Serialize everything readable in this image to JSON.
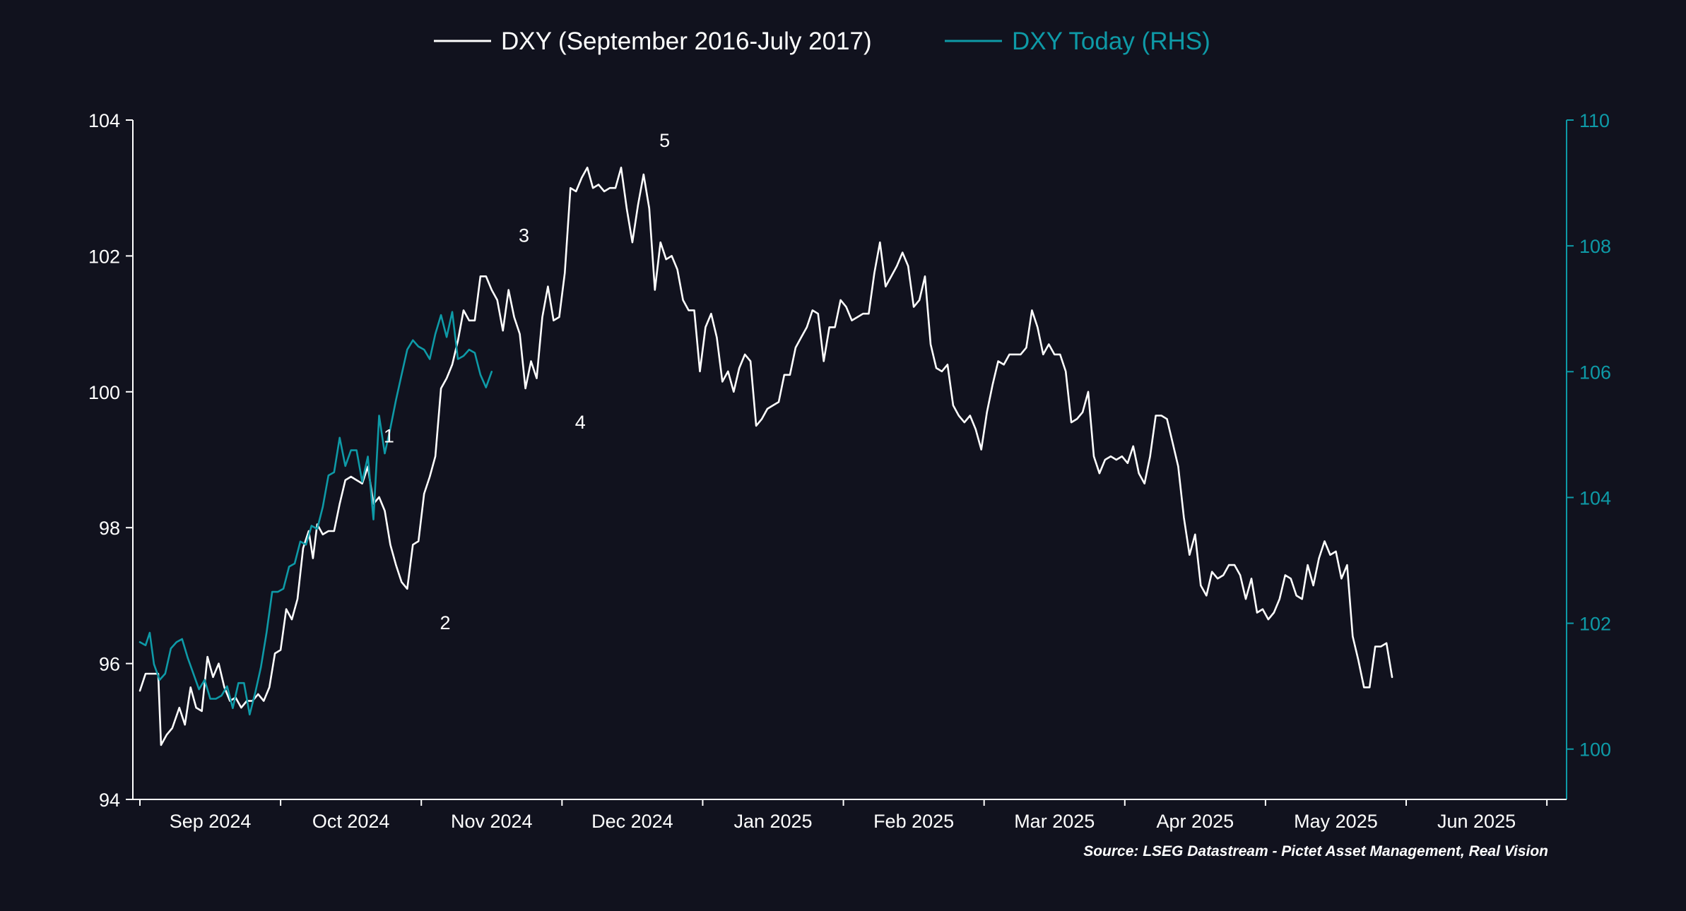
{
  "colors": {
    "background": "#11121e",
    "series_1": "#ffffff",
    "series_2": "#0e9aa7",
    "left_axis": "#ffffff",
    "right_axis": "#0e9aa7"
  },
  "chart_data": {
    "type": "line",
    "legend": {
      "placement": "top-center",
      "items": [
        {
          "label": "DXY (September 2016-July 2017)",
          "color": "#ffffff"
        },
        {
          "label": "DXY Today (RHS)",
          "color": "#0e9aa7"
        }
      ]
    },
    "source": "Source: LSEG Datastream - Pictet Asset Management, Real Vision",
    "grid": false,
    "x_axis": {
      "labels": [
        "Sep 2024",
        "Oct 2024",
        "Nov 2024",
        "Dec 2024",
        "Jan 2025",
        "Feb 2025",
        "Mar 2025",
        "Apr 2025",
        "May 2025",
        "Jun 2025"
      ],
      "range": [
        0,
        10.14
      ]
    },
    "y_axis_left": {
      "range": [
        94,
        104
      ],
      "ticks": [
        94,
        96,
        98,
        100,
        102,
        104
      ],
      "tick_labels": [
        "94",
        "96",
        "98",
        "100",
        "102",
        "104"
      ]
    },
    "y_axis_right": {
      "range": [
        99.2,
        110
      ],
      "ticks": [
        100,
        102,
        104,
        106,
        108,
        110
      ],
      "tick_labels": [
        "100",
        "102",
        "104",
        "106",
        "108",
        "110"
      ]
    },
    "annotations": [
      {
        "text": "1",
        "x": 1.77,
        "y": 99.35
      },
      {
        "text": "2",
        "x": 2.17,
        "y": 96.6
      },
      {
        "text": "3",
        "x": 2.73,
        "y": 102.3
      },
      {
        "text": "4",
        "x": 3.13,
        "y": 99.55
      },
      {
        "text": "5",
        "x": 3.73,
        "y": 103.7
      }
    ],
    "series": [
      {
        "name": "DXY (September 2016-July 2017)",
        "axis": "left",
        "points": [
          [
            0.0,
            95.6
          ],
          [
            0.04,
            95.85
          ],
          [
            0.09,
            95.85
          ],
          [
            0.13,
            95.85
          ],
          [
            0.15,
            94.8
          ],
          [
            0.19,
            94.95
          ],
          [
            0.23,
            95.05
          ],
          [
            0.28,
            95.35
          ],
          [
            0.32,
            95.1
          ],
          [
            0.36,
            95.65
          ],
          [
            0.4,
            95.35
          ],
          [
            0.44,
            95.3
          ],
          [
            0.48,
            96.1
          ],
          [
            0.52,
            95.8
          ],
          [
            0.56,
            96.0
          ],
          [
            0.6,
            95.65
          ],
          [
            0.64,
            95.45
          ],
          [
            0.68,
            95.5
          ],
          [
            0.72,
            95.35
          ],
          [
            0.76,
            95.45
          ],
          [
            0.8,
            95.45
          ],
          [
            0.84,
            95.55
          ],
          [
            0.88,
            95.45
          ],
          [
            0.92,
            95.65
          ],
          [
            0.96,
            96.15
          ],
          [
            1.0,
            96.2
          ],
          [
            1.04,
            96.8
          ],
          [
            1.08,
            96.65
          ],
          [
            1.12,
            96.95
          ],
          [
            1.16,
            97.7
          ],
          [
            1.2,
            97.95
          ],
          [
            1.23,
            97.55
          ],
          [
            1.26,
            98.05
          ],
          [
            1.3,
            97.9
          ],
          [
            1.34,
            97.95
          ],
          [
            1.38,
            97.95
          ],
          [
            1.42,
            98.35
          ],
          [
            1.46,
            98.7
          ],
          [
            1.5,
            98.75
          ],
          [
            1.54,
            98.7
          ],
          [
            1.58,
            98.65
          ],
          [
            1.62,
            98.9
          ],
          [
            1.66,
            98.35
          ],
          [
            1.7,
            98.45
          ],
          [
            1.74,
            98.25
          ],
          [
            1.78,
            97.75
          ],
          [
            1.82,
            97.45
          ],
          [
            1.86,
            97.2
          ],
          [
            1.9,
            97.1
          ],
          [
            1.94,
            97.75
          ],
          [
            1.98,
            97.8
          ],
          [
            2.02,
            98.5
          ],
          [
            2.06,
            98.75
          ],
          [
            2.1,
            99.05
          ],
          [
            2.14,
            100.05
          ],
          [
            2.18,
            100.2
          ],
          [
            2.22,
            100.4
          ],
          [
            2.26,
            100.75
          ],
          [
            2.3,
            101.2
          ],
          [
            2.34,
            101.05
          ],
          [
            2.38,
            101.05
          ],
          [
            2.42,
            101.7
          ],
          [
            2.46,
            101.7
          ],
          [
            2.5,
            101.5
          ],
          [
            2.54,
            101.35
          ],
          [
            2.58,
            100.9
          ],
          [
            2.62,
            101.5
          ],
          [
            2.66,
            101.1
          ],
          [
            2.7,
            100.85
          ],
          [
            2.74,
            100.05
          ],
          [
            2.78,
            100.45
          ],
          [
            2.82,
            100.2
          ],
          [
            2.86,
            101.1
          ],
          [
            2.9,
            101.55
          ],
          [
            2.94,
            101.05
          ],
          [
            2.98,
            101.1
          ],
          [
            3.02,
            101.75
          ],
          [
            3.06,
            103.0
          ],
          [
            3.1,
            102.95
          ],
          [
            3.14,
            103.15
          ],
          [
            3.18,
            103.3
          ],
          [
            3.22,
            103.0
          ],
          [
            3.26,
            103.05
          ],
          [
            3.3,
            102.95
          ],
          [
            3.34,
            103.0
          ],
          [
            3.38,
            103.0
          ],
          [
            3.42,
            103.3
          ],
          [
            3.46,
            102.7
          ],
          [
            3.5,
            102.2
          ],
          [
            3.54,
            102.75
          ],
          [
            3.58,
            103.2
          ],
          [
            3.62,
            102.7
          ],
          [
            3.66,
            101.5
          ],
          [
            3.7,
            102.2
          ],
          [
            3.74,
            101.95
          ],
          [
            3.78,
            102.0
          ],
          [
            3.82,
            101.8
          ],
          [
            3.86,
            101.35
          ],
          [
            3.9,
            101.2
          ],
          [
            3.94,
            101.2
          ],
          [
            3.98,
            100.3
          ],
          [
            4.02,
            100.95
          ],
          [
            4.06,
            101.15
          ],
          [
            4.1,
            100.8
          ],
          [
            4.14,
            100.15
          ],
          [
            4.18,
            100.3
          ],
          [
            4.22,
            100.0
          ],
          [
            4.26,
            100.35
          ],
          [
            4.3,
            100.55
          ],
          [
            4.34,
            100.45
          ],
          [
            4.38,
            99.5
          ],
          [
            4.42,
            99.6
          ],
          [
            4.46,
            99.75
          ],
          [
            4.5,
            99.8
          ],
          [
            4.54,
            99.85
          ],
          [
            4.58,
            100.25
          ],
          [
            4.62,
            100.25
          ],
          [
            4.66,
            100.65
          ],
          [
            4.7,
            100.8
          ],
          [
            4.74,
            100.95
          ],
          [
            4.78,
            101.2
          ],
          [
            4.82,
            101.15
          ],
          [
            4.86,
            100.45
          ],
          [
            4.9,
            100.95
          ],
          [
            4.94,
            100.95
          ],
          [
            4.98,
            101.35
          ],
          [
            5.02,
            101.25
          ],
          [
            5.06,
            101.05
          ],
          [
            5.1,
            101.1
          ],
          [
            5.14,
            101.15
          ],
          [
            5.18,
            101.15
          ],
          [
            5.22,
            101.75
          ],
          [
            5.26,
            102.2
          ],
          [
            5.3,
            101.55
          ],
          [
            5.34,
            101.7
          ],
          [
            5.38,
            101.85
          ],
          [
            5.42,
            102.05
          ],
          [
            5.46,
            101.85
          ],
          [
            5.5,
            101.25
          ],
          [
            5.54,
            101.35
          ],
          [
            5.58,
            101.7
          ],
          [
            5.62,
            100.7
          ],
          [
            5.66,
            100.35
          ],
          [
            5.7,
            100.3
          ],
          [
            5.74,
            100.4
          ],
          [
            5.78,
            99.8
          ],
          [
            5.82,
            99.65
          ],
          [
            5.86,
            99.55
          ],
          [
            5.9,
            99.65
          ],
          [
            5.94,
            99.45
          ],
          [
            5.98,
            99.15
          ],
          [
            6.02,
            99.7
          ],
          [
            6.06,
            100.1
          ],
          [
            6.1,
            100.45
          ],
          [
            6.14,
            100.4
          ],
          [
            6.18,
            100.55
          ],
          [
            6.22,
            100.55
          ],
          [
            6.26,
            100.55
          ],
          [
            6.3,
            100.65
          ],
          [
            6.34,
            101.2
          ],
          [
            6.38,
            100.95
          ],
          [
            6.42,
            100.55
          ],
          [
            6.46,
            100.7
          ],
          [
            6.5,
            100.55
          ],
          [
            6.54,
            100.55
          ],
          [
            6.58,
            100.3
          ],
          [
            6.62,
            99.55
          ],
          [
            6.66,
            99.6
          ],
          [
            6.7,
            99.7
          ],
          [
            6.74,
            100.0
          ],
          [
            6.78,
            99.05
          ],
          [
            6.82,
            98.8
          ],
          [
            6.86,
            99.0
          ],
          [
            6.9,
            99.05
          ],
          [
            6.94,
            99.0
          ],
          [
            6.98,
            99.05
          ],
          [
            7.02,
            98.95
          ],
          [
            7.06,
            99.2
          ],
          [
            7.1,
            98.8
          ],
          [
            7.14,
            98.65
          ],
          [
            7.18,
            99.05
          ],
          [
            7.22,
            99.65
          ],
          [
            7.26,
            99.65
          ],
          [
            7.3,
            99.6
          ],
          [
            7.34,
            99.25
          ],
          [
            7.38,
            98.9
          ],
          [
            7.42,
            98.15
          ],
          [
            7.46,
            97.6
          ],
          [
            7.5,
            97.9
          ],
          [
            7.54,
            97.15
          ],
          [
            7.58,
            97.0
          ],
          [
            7.62,
            97.35
          ],
          [
            7.66,
            97.25
          ],
          [
            7.7,
            97.3
          ],
          [
            7.74,
            97.45
          ],
          [
            7.78,
            97.45
          ],
          [
            7.82,
            97.3
          ],
          [
            7.86,
            96.95
          ],
          [
            7.9,
            97.25
          ],
          [
            7.94,
            96.75
          ],
          [
            7.98,
            96.8
          ],
          [
            8.02,
            96.65
          ],
          [
            8.06,
            96.75
          ],
          [
            8.1,
            96.95
          ],
          [
            8.14,
            97.3
          ],
          [
            8.18,
            97.25
          ],
          [
            8.22,
            97.0
          ],
          [
            8.26,
            96.95
          ],
          [
            8.3,
            97.45
          ],
          [
            8.34,
            97.15
          ],
          [
            8.38,
            97.55
          ],
          [
            8.42,
            97.8
          ],
          [
            8.46,
            97.6
          ],
          [
            8.5,
            97.65
          ],
          [
            8.54,
            97.25
          ],
          [
            8.58,
            97.45
          ],
          [
            8.62,
            96.4
          ],
          [
            8.66,
            96.05
          ],
          [
            8.7,
            95.65
          ],
          [
            8.74,
            95.65
          ],
          [
            8.78,
            96.25
          ],
          [
            8.82,
            96.25
          ],
          [
            8.86,
            96.3
          ],
          [
            8.9,
            95.8
          ]
        ]
      },
      {
        "name": "DXY Today (RHS)",
        "axis": "right",
        "points": [
          [
            0.0,
            101.7
          ],
          [
            0.04,
            101.65
          ],
          [
            0.07,
            101.85
          ],
          [
            0.1,
            101.35
          ],
          [
            0.14,
            101.1
          ],
          [
            0.18,
            101.2
          ],
          [
            0.22,
            101.6
          ],
          [
            0.26,
            101.7
          ],
          [
            0.3,
            101.75
          ],
          [
            0.34,
            101.45
          ],
          [
            0.38,
            101.2
          ],
          [
            0.42,
            100.95
          ],
          [
            0.46,
            101.1
          ],
          [
            0.5,
            100.8
          ],
          [
            0.54,
            100.8
          ],
          [
            0.58,
            100.85
          ],
          [
            0.62,
            101.0
          ],
          [
            0.66,
            100.65
          ],
          [
            0.7,
            101.05
          ],
          [
            0.74,
            101.05
          ],
          [
            0.78,
            100.55
          ],
          [
            0.82,
            100.9
          ],
          [
            0.86,
            101.3
          ],
          [
            0.9,
            101.85
          ],
          [
            0.94,
            102.5
          ],
          [
            0.98,
            102.5
          ],
          [
            1.02,
            102.55
          ],
          [
            1.06,
            102.9
          ],
          [
            1.1,
            102.95
          ],
          [
            1.14,
            103.3
          ],
          [
            1.18,
            103.25
          ],
          [
            1.22,
            103.55
          ],
          [
            1.26,
            103.5
          ],
          [
            1.3,
            103.85
          ],
          [
            1.34,
            104.35
          ],
          [
            1.38,
            104.4
          ],
          [
            1.42,
            104.95
          ],
          [
            1.46,
            104.5
          ],
          [
            1.5,
            104.75
          ],
          [
            1.54,
            104.75
          ],
          [
            1.58,
            104.25
          ],
          [
            1.62,
            104.65
          ],
          [
            1.66,
            103.65
          ],
          [
            1.7,
            105.3
          ],
          [
            1.74,
            104.7
          ],
          [
            1.78,
            105.1
          ],
          [
            1.82,
            105.55
          ],
          [
            1.86,
            105.95
          ],
          [
            1.9,
            106.35
          ],
          [
            1.94,
            106.5
          ],
          [
            1.98,
            106.4
          ],
          [
            2.02,
            106.35
          ],
          [
            2.06,
            106.2
          ],
          [
            2.1,
            106.6
          ],
          [
            2.14,
            106.9
          ],
          [
            2.18,
            106.55
          ],
          [
            2.22,
            106.95
          ],
          [
            2.26,
            106.2
          ],
          [
            2.3,
            106.25
          ],
          [
            2.34,
            106.35
          ],
          [
            2.38,
            106.3
          ],
          [
            2.42,
            105.95
          ],
          [
            2.46,
            105.75
          ],
          [
            2.5,
            106.0
          ]
        ]
      }
    ]
  }
}
